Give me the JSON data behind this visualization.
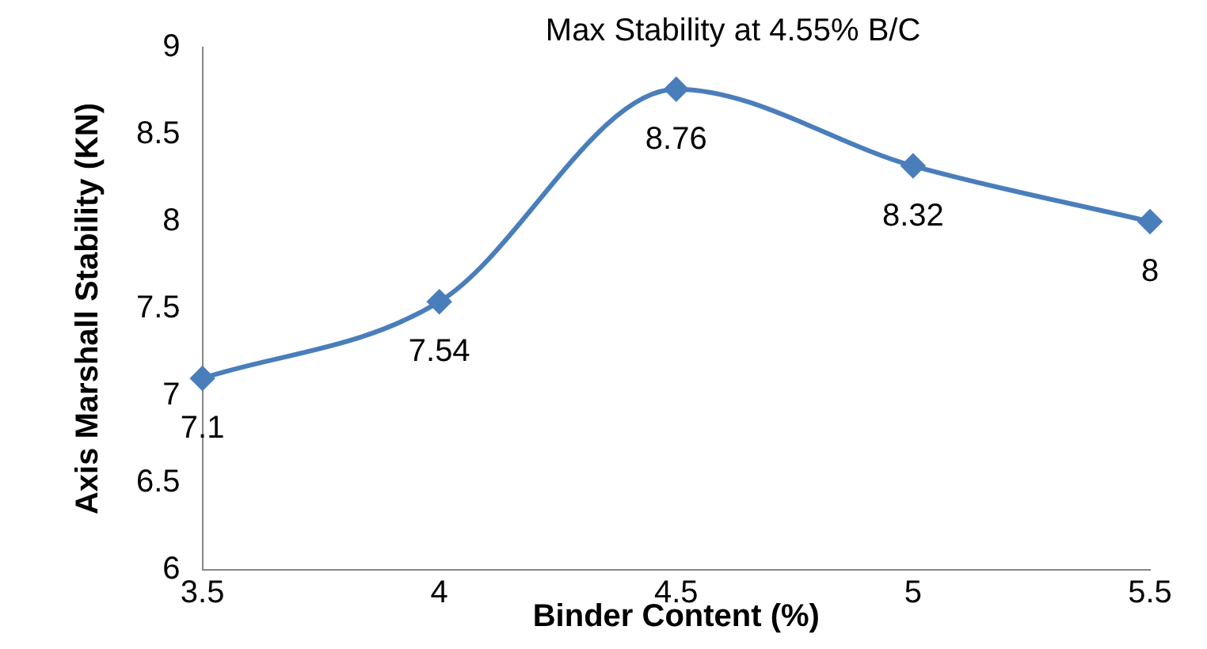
{
  "chart_data": {
    "type": "line",
    "xlabel": "Binder Content (%)",
    "ylabel": "Axis Marshall Stability (KN)",
    "annotations": [
      "Max Stability at 4.55% B/C"
    ],
    "x": [
      3.5,
      4,
      4.5,
      5,
      5.5
    ],
    "series": [
      {
        "color": "#4a7ebb",
        "values": [
          7.1,
          7.54,
          8.76,
          8.32,
          8
        ]
      }
    ],
    "xlim": [
      3.5,
      5.5
    ],
    "xticks": [
      3.5,
      4,
      4.5,
      5,
      5.5
    ],
    "ylim": [
      6,
      9
    ],
    "yticks": [
      6,
      6.5,
      7,
      7.5,
      8,
      8.5,
      9
    ],
    "grid": false,
    "legend": false,
    "marker": "diamond",
    "line_style": "solid",
    "data_labels": true
  }
}
